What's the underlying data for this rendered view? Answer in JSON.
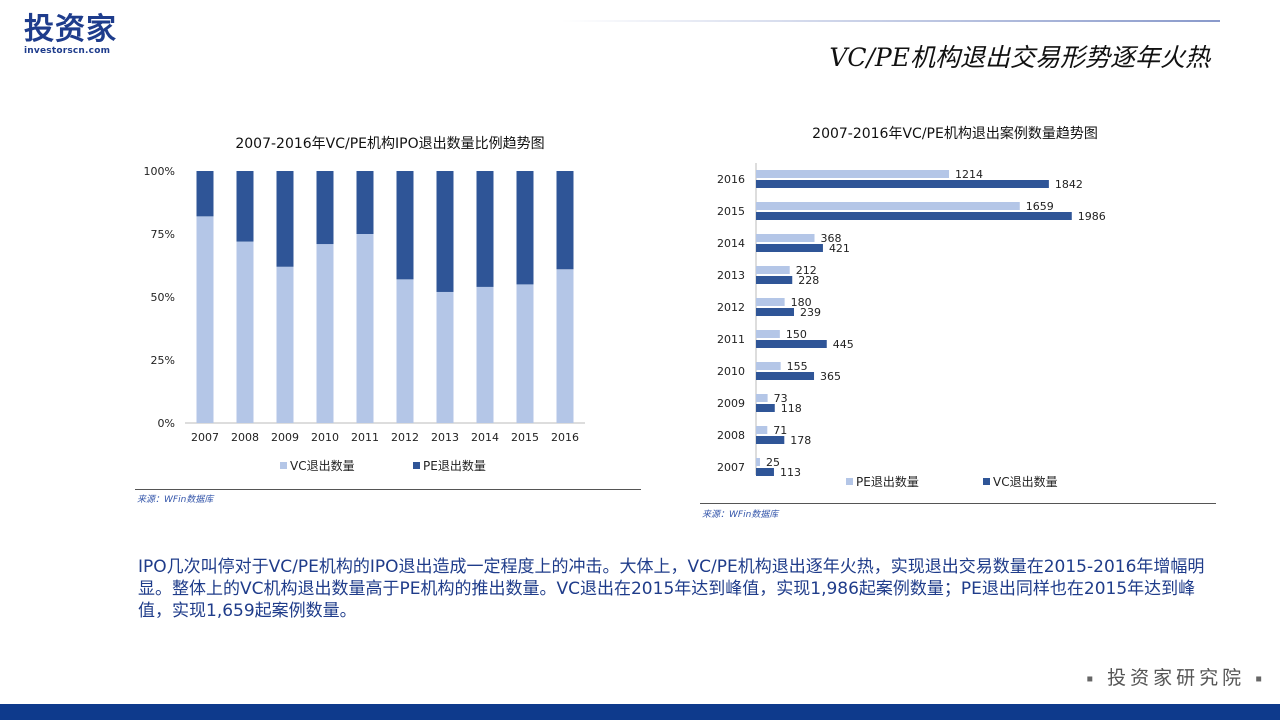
{
  "header": {
    "logo_text": "投资家",
    "logo_site": "investorscn.com",
    "title": "VC/PE机构退出交易形势逐年火热"
  },
  "colors": {
    "vc": "#b4c6e7",
    "pe": "#2f5597",
    "accent": "#1f3c8a",
    "bar": "#0e3a8c"
  },
  "chart_data": [
    {
      "type": "bar",
      "stacked": true,
      "title": "2007-2016年VC/PE机构IPO退出数量比例趋势图",
      "categories": [
        "2007",
        "2008",
        "2009",
        "2010",
        "2011",
        "2012",
        "2013",
        "2014",
        "2015",
        "2016"
      ],
      "series": [
        {
          "name": "VC退出数量",
          "values": [
            82,
            72,
            62,
            71,
            75,
            57,
            52,
            54,
            55,
            61
          ]
        },
        {
          "name": "PE退出数量",
          "values": [
            18,
            28,
            38,
            29,
            25,
            43,
            48,
            46,
            45,
            39
          ]
        }
      ],
      "yticks": [
        "0%",
        "25%",
        "50%",
        "75%",
        "100%"
      ],
      "ylim": [
        0,
        100
      ],
      "legend": "bottom",
      "source": "来源：WFin数据库"
    },
    {
      "type": "bar",
      "orientation": "horizontal",
      "title": "2007-2016年VC/PE机构退出案例数量趋势图",
      "categories": [
        "2016",
        "2015",
        "2014",
        "2013",
        "2012",
        "2011",
        "2010",
        "2009",
        "2008",
        "2007"
      ],
      "series": [
        {
          "name": "PE退出数量",
          "values": [
            1214,
            1659,
            368,
            212,
            180,
            150,
            155,
            73,
            71,
            25
          ]
        },
        {
          "name": "VC退出数量",
          "values": [
            1842,
            1986,
            421,
            228,
            239,
            445,
            365,
            118,
            178,
            113
          ]
        }
      ],
      "xlim": [
        0,
        2200
      ],
      "legend": "bottom",
      "source": "来源：WFin数据库"
    }
  ],
  "summary": "IPO几次叫停对于VC/PE机构的IPO退出造成一定程度上的冲击。大体上，VC/PE机构退出逐年火热，实现退出交易数量在2015-2016年增幅明显。整体上的VC机构退出数量高于PE机构的推出数量。VC退出在2015年达到峰值，实现1,986起案例数量；PE退出同样也在2015年达到峰值，实现1,659起案例数量。",
  "footer": {
    "brand": "投资家研究院",
    "marker": "▪"
  }
}
